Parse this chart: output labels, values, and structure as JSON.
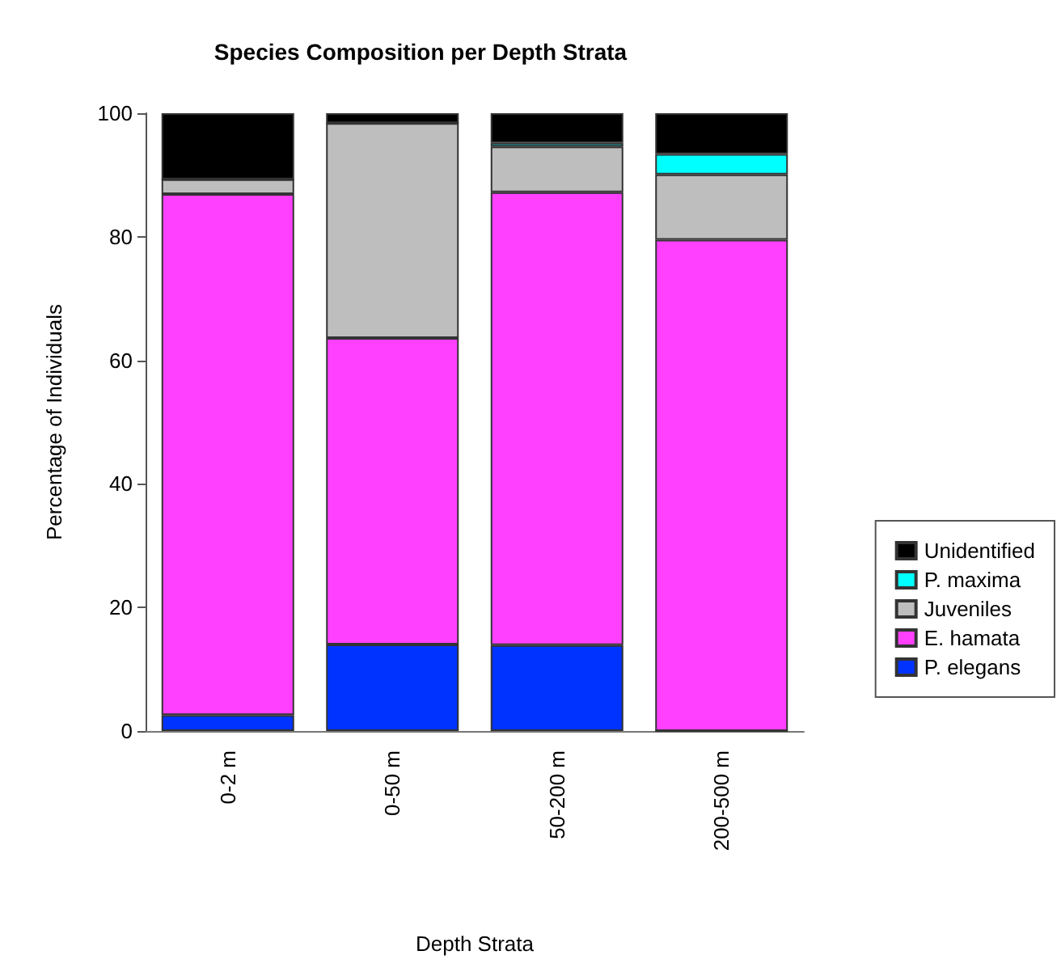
{
  "chart_data": {
    "type": "bar",
    "title": "Species Composition per Depth Strata",
    "xlabel": "Depth Strata",
    "ylabel": "Percentage of Individuals",
    "categories": [
      "0-2 m",
      "0-50 m",
      "50-200 m",
      "200-500 m"
    ],
    "stacked": true,
    "ylim": [
      0,
      100
    ],
    "yticks": [
      0,
      20,
      40,
      60,
      80,
      100
    ],
    "grid": false,
    "legend": "right",
    "series": [
      {
        "name": "P. elegans",
        "color": "#0033ff",
        "values": [
          2.6,
          14.0,
          13.9,
          0
        ]
      },
      {
        "name": "E. hamata",
        "color": "#ff40ff",
        "values": [
          84.3,
          49.6,
          73.3,
          79.5
        ]
      },
      {
        "name": "Juveniles",
        "color": "#bebebe",
        "values": [
          2.4,
          34.8,
          7.4,
          10.6
        ]
      },
      {
        "name": "P. maxima",
        "color": "#00ffff",
        "values": [
          0,
          0,
          0.6,
          3.3
        ]
      },
      {
        "name": "Unidentified",
        "color": "#000000",
        "values": [
          10.7,
          1.6,
          4.8,
          6.6
        ]
      }
    ]
  }
}
